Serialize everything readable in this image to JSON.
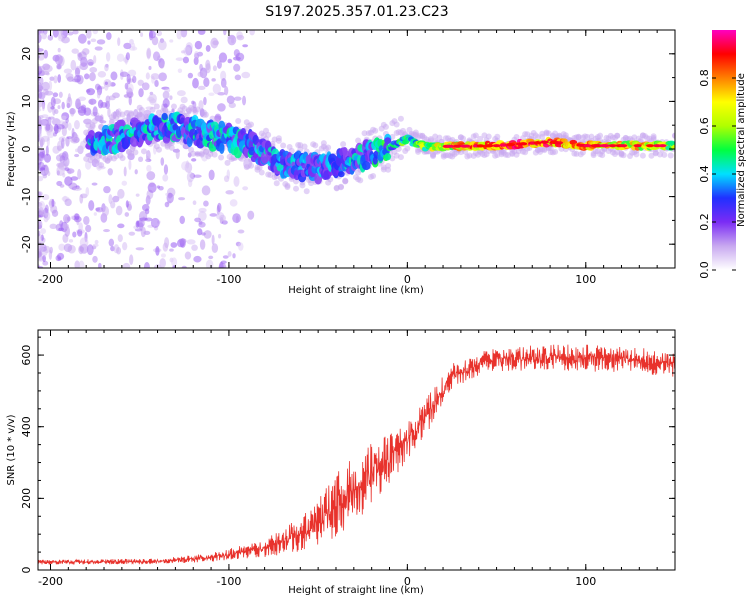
{
  "title": "S197.2025.357.01.23.C23",
  "colors": {
    "snr_line": "#e8322c",
    "frame": "#000000",
    "background": "#ffffff",
    "spectrum_band_low": "#7b2cf5",
    "spectrum_band_high": "#ff2040"
  },
  "chart_data": [
    {
      "type": "heatmap",
      "title": "",
      "xlabel": "Height of straight line (km)",
      "ylabel": "Frequency (Hz)",
      "xlim": [
        -207,
        150
      ],
      "ylim": [
        -25,
        25
      ],
      "xticks": [
        -200,
        -100,
        0,
        100
      ],
      "xtick_labels": [
        "-200",
        "-100",
        "0",
        "100"
      ],
      "yticks": [
        -20,
        -10,
        0,
        10,
        20
      ],
      "ytick_labels": [
        "-20",
        "-10",
        "0",
        "10",
        "20"
      ],
      "colorbar": {
        "label": "Normalized spectral amplitude",
        "range": [
          0,
          1
        ],
        "ticks": [
          0.0,
          0.2,
          0.4,
          0.6,
          0.8
        ],
        "tick_labels": [
          "0.0",
          "0.2",
          "0.4",
          "0.6",
          "0.8"
        ],
        "stops": [
          "#ffffff",
          "#c8a8f0",
          "#7b2cf5",
          "#2030ff",
          "#00e0ff",
          "#00ff40",
          "#b0ff00",
          "#ffff00",
          "#ff8000",
          "#ff0000",
          "#ff00c0"
        ]
      },
      "band_center": [
        {
          "x": -175,
          "f": 1.0
        },
        {
          "x": -150,
          "f": 4.0
        },
        {
          "x": -130,
          "f": 4.5
        },
        {
          "x": -110,
          "f": 3.0
        },
        {
          "x": -90,
          "f": 1.0
        },
        {
          "x": -70,
          "f": -3.0
        },
        {
          "x": -55,
          "f": -4.0
        },
        {
          "x": -40,
          "f": -3.5
        },
        {
          "x": -25,
          "f": -1.5
        },
        {
          "x": -10,
          "f": 0.5
        },
        {
          "x": 0,
          "f": 2.0
        },
        {
          "x": 10,
          "f": 0.5
        },
        {
          "x": 50,
          "f": 0.7
        },
        {
          "x": 80,
          "f": 1.5
        },
        {
          "x": 100,
          "f": 0.7
        },
        {
          "x": 150,
          "f": 0.7
        }
      ],
      "band_amplitude": [
        {
          "x": -175,
          "a": 0.3
        },
        {
          "x": -100,
          "a": 0.3
        },
        {
          "x": -40,
          "a": 0.25
        },
        {
          "x": -15,
          "a": 0.35
        },
        {
          "x": 0,
          "a": 0.45
        },
        {
          "x": 30,
          "a": 0.7
        },
        {
          "x": 60,
          "a": 0.85
        },
        {
          "x": 100,
          "a": 0.75
        },
        {
          "x": 150,
          "a": 0.6
        }
      ]
    },
    {
      "type": "line",
      "title": "",
      "xlabel": "Height of straight line (km)",
      "ylabel": "SNR (10 * v/v)",
      "xlim": [
        -207,
        150
      ],
      "ylim": [
        0,
        670
      ],
      "xticks": [
        -200,
        -100,
        0,
        100
      ],
      "xtick_labels": [
        "-200",
        "-100",
        "0",
        "100"
      ],
      "yticks": [
        0,
        200,
        400,
        600
      ],
      "ytick_labels": [
        "0",
        "200",
        "400",
        "600"
      ],
      "series": [
        {
          "name": "SNR",
          "profile": [
            {
              "x": -207,
              "mean": 22,
              "jitter": 8
            },
            {
              "x": -140,
              "mean": 24,
              "jitter": 10
            },
            {
              "x": -110,
              "mean": 35,
              "jitter": 15
            },
            {
              "x": -80,
              "mean": 60,
              "jitter": 30
            },
            {
              "x": -55,
              "mean": 110,
              "jitter": 70
            },
            {
              "x": -40,
              "mean": 180,
              "jitter": 110
            },
            {
              "x": -25,
              "mean": 250,
              "jitter": 120
            },
            {
              "x": -10,
              "mean": 310,
              "jitter": 90
            },
            {
              "x": 0,
              "mean": 360,
              "jitter": 70
            },
            {
              "x": 15,
              "mean": 460,
              "jitter": 60
            },
            {
              "x": 25,
              "mean": 540,
              "jitter": 45
            },
            {
              "x": 45,
              "mean": 585,
              "jitter": 40
            },
            {
              "x": 80,
              "mean": 595,
              "jitter": 45
            },
            {
              "x": 115,
              "mean": 590,
              "jitter": 50
            },
            {
              "x": 150,
              "mean": 575,
              "jitter": 45
            }
          ]
        }
      ]
    }
  ]
}
